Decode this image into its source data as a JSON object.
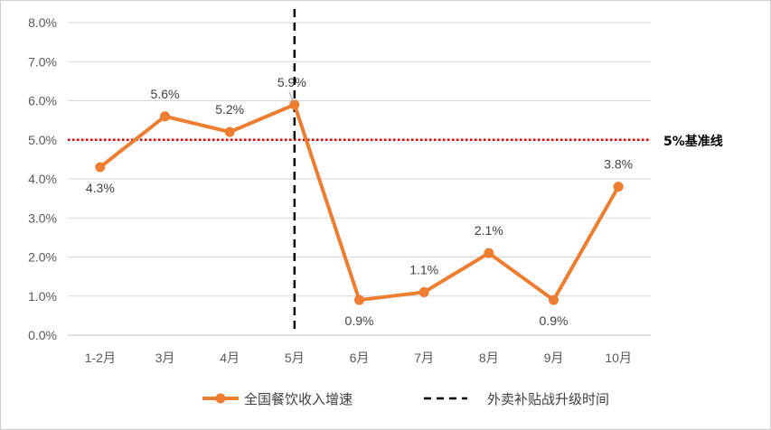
{
  "chart_data": {
    "type": "line",
    "categories": [
      "1-2月",
      "3月",
      "4月",
      "5月",
      "6月",
      "7月",
      "8月",
      "9月",
      "10月"
    ],
    "series": [
      {
        "name": "全国餐饮收入增速",
        "values": [
          4.3,
          5.6,
          5.2,
          5.9,
          0.9,
          1.1,
          2.1,
          0.9,
          3.8
        ],
        "labels": [
          "4.3%",
          "5.6%",
          "5.2%",
          "5.9%",
          "0.9%",
          "1.1%",
          "2.1%",
          "0.9%",
          "3.8%"
        ],
        "color": "#ED7D31"
      }
    ],
    "y_ticks": [
      "0.0%",
      "1.0%",
      "2.0%",
      "3.0%",
      "4.0%",
      "5.0%",
      "6.0%",
      "7.0%",
      "8.0%"
    ],
    "ylim": [
      0,
      8
    ],
    "grid": true,
    "reference_line": {
      "value": 5,
      "label": "5%基准线",
      "color": "#E00000",
      "style": "dotted"
    },
    "vertical_marker": {
      "category": "5月",
      "name": "外卖补贴战升级时间",
      "color": "#000000",
      "style": "dashed"
    },
    "legend_position": "bottom",
    "title": "",
    "xlabel": "",
    "ylabel": ""
  }
}
